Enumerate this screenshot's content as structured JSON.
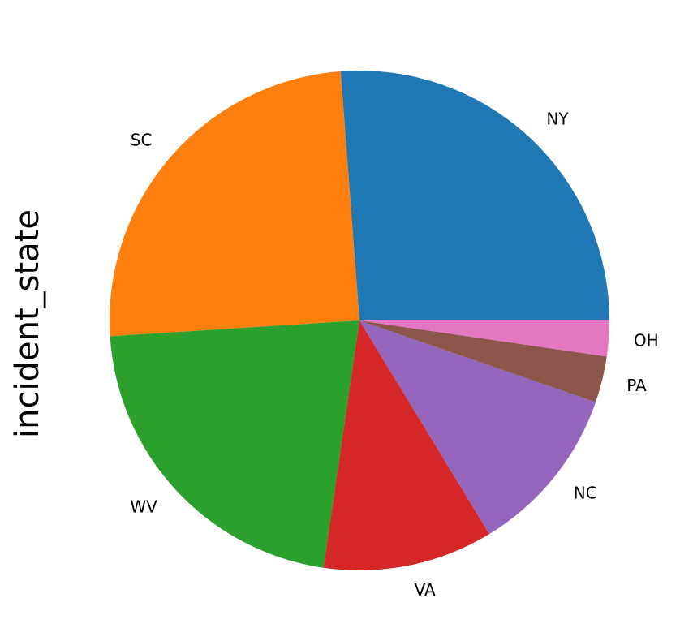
{
  "chart_data": {
    "type": "pie",
    "ylabel": "incident_state",
    "start_angle_deg": 0,
    "direction": "counterclockwise",
    "slices": [
      {
        "label": "NY",
        "value": 262,
        "color": "#1f77b4"
      },
      {
        "label": "SC",
        "value": 248,
        "color": "#ff7f0e"
      },
      {
        "label": "WV",
        "value": 217,
        "color": "#2ca02c"
      },
      {
        "label": "VA",
        "value": 110,
        "color": "#d62728"
      },
      {
        "label": "NC",
        "value": 110,
        "color": "#9467bd"
      },
      {
        "label": "PA",
        "value": 30,
        "color": "#8c564b"
      },
      {
        "label": "OH",
        "value": 23,
        "color": "#e377c2"
      }
    ]
  }
}
